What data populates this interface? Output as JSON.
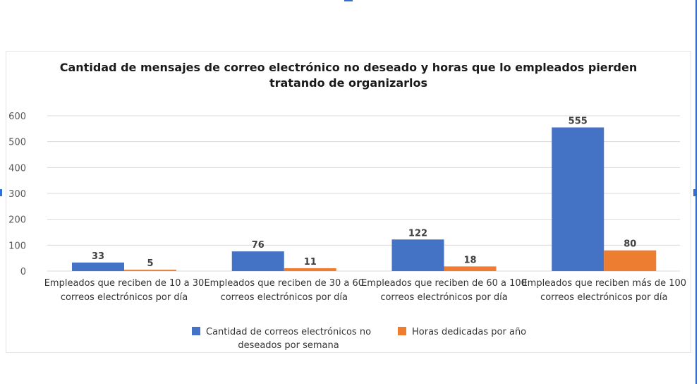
{
  "chart_data": {
    "type": "bar",
    "title": "Cantidad de mensajes de correo electrónico no deseado y horas que lo empleados pierden tratando de organizarlos",
    "title_lines": [
      "Cantidad de mensajes de correo electrónico no deseado y horas que lo empleados pierden",
      "tratando de organizarlos"
    ],
    "categories": [
      "Empleados que reciben de 10 a 30 correos electrónicos por día",
      "Empleados que reciben de 30 a 60 correos electrónicos por día",
      "Empleados que reciben de 60 a 100 correos electrónicos por día",
      "Empleados que reciben más de 100 correos electrónicos por día"
    ],
    "category_lines": [
      [
        "Empleados que reciben de 10 a 30",
        "correos electrónicos por día"
      ],
      [
        "Empleados que reciben de 30 a 60",
        "correos electrónicos por día"
      ],
      [
        "Empleados que reciben de 60 a 100",
        "correos electrónicos por día"
      ],
      [
        "Empleados que reciben más de 100",
        "correos electrónicos por día"
      ]
    ],
    "series": [
      {
        "name": "Cantidad de correos electrónicos no deseados por semana",
        "name_lines": [
          "Cantidad de correos electrónicos no",
          "deseados por semana"
        ],
        "color": "#4472c4",
        "values": [
          33,
          76,
          122,
          555
        ]
      },
      {
        "name": "Horas dedicadas por año",
        "name_lines": [
          "Horas dedicadas por año"
        ],
        "color": "#ed7d31",
        "values": [
          5,
          11,
          18,
          80
        ]
      }
    ],
    "yticks": [
      0,
      100,
      200,
      300,
      400,
      500,
      600
    ],
    "ylim": [
      0,
      600
    ],
    "xlabel": "",
    "ylabel": "",
    "grid": true,
    "legend_position": "bottom",
    "data_labels": true
  },
  "colors": {
    "frame_accent": "#2f6fd6",
    "gridline": "#d9d9d9",
    "axis_text": "#595959"
  }
}
